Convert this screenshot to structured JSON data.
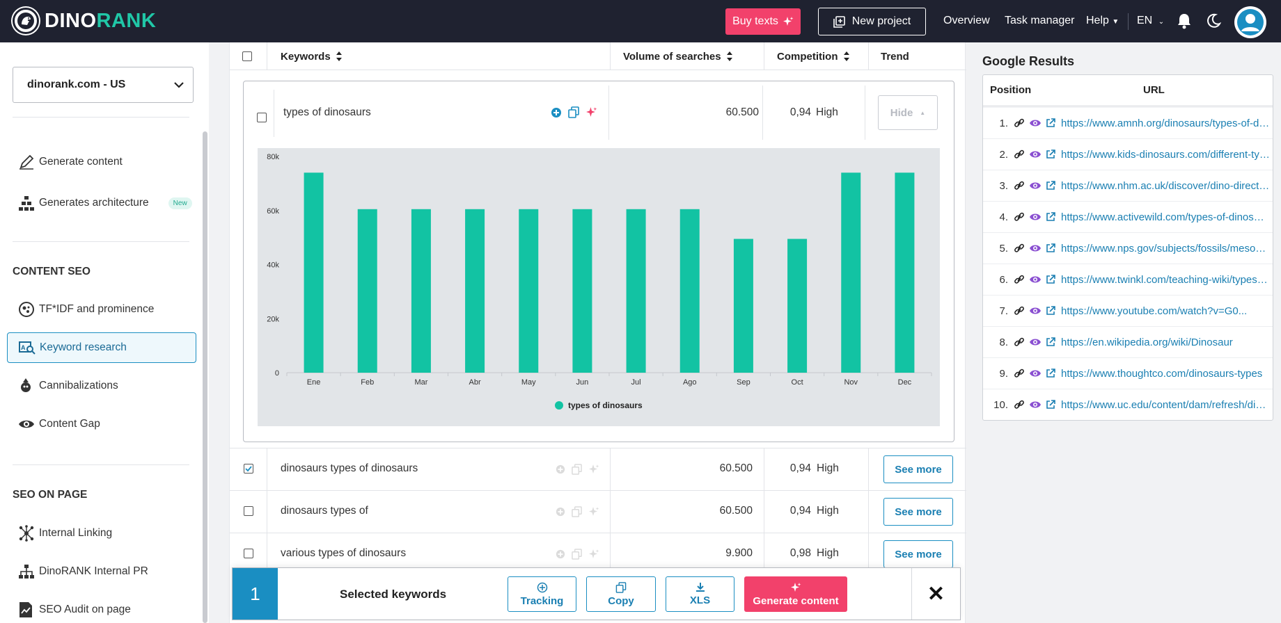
{
  "app": {
    "logo_text_1": "DINO",
    "logo_text_2": "RANK",
    "accent_color": "#20c7a7",
    "pink_color": "#f2416b",
    "blue_color": "#1a8ec2"
  },
  "topbar": {
    "buy_texts": "Buy texts",
    "new_project": "New project",
    "overview": "Overview",
    "task_manager": "Task manager",
    "help": "Help",
    "language": "EN"
  },
  "sidebar": {
    "project": "dinorank.com - US",
    "items_top": [
      {
        "label": "Generate content",
        "icon": "pencil-icon"
      },
      {
        "label": "Generates architecture",
        "icon": "hierarchy-icon",
        "badge": "New"
      }
    ],
    "section_content_seo": "CONTENT SEO",
    "content_seo_items": [
      {
        "label": "TF*IDF and prominence",
        "icon": "tfidf-icon"
      },
      {
        "label": "Keyword research",
        "icon": "keyword-research-icon",
        "active": true
      },
      {
        "label": "Cannibalizations",
        "icon": "cannibal-icon"
      },
      {
        "label": "Content Gap",
        "icon": "eye-icon"
      }
    ],
    "section_seo_on_page": "SEO ON PAGE",
    "seo_on_page_items": [
      {
        "label": "Internal Linking",
        "icon": "network-icon"
      },
      {
        "label": "DinoRANK Internal PR",
        "icon": "sitemap-icon"
      },
      {
        "label": "SEO Audit on page",
        "icon": "audit-icon"
      }
    ]
  },
  "table": {
    "headers": {
      "keywords": "Keywords",
      "volume": "Volume of searches",
      "competition": "Competition",
      "trend": "Trend"
    },
    "expanded_row": {
      "keyword": "types of dinosaurs",
      "volume": "60.500",
      "competition": "0,94",
      "level": "High",
      "hide_label": "Hide"
    },
    "rows": [
      {
        "keyword": "dinosaurs types of dinosaurs",
        "volume": "60.500",
        "competition": "0,94",
        "level": "High",
        "checked": true,
        "action": "See more"
      },
      {
        "keyword": "dinosaurs types of",
        "volume": "60.500",
        "competition": "0,94",
        "level": "High",
        "checked": false,
        "action": "See more"
      },
      {
        "keyword": "various types of dinosaurs",
        "volume": "9.900",
        "competition": "0,98",
        "level": "High",
        "checked": false,
        "action": "See more"
      }
    ]
  },
  "chart_data": {
    "type": "bar",
    "categories": [
      "Ene",
      "Feb",
      "Mar",
      "Abr",
      "May",
      "Jun",
      "Jul",
      "Ago",
      "Sep",
      "Oct",
      "Nov",
      "Dec"
    ],
    "series": [
      {
        "name": "types of dinosaurs",
        "values": [
          74000,
          60500,
          60500,
          60500,
          60500,
          60500,
          60500,
          60500,
          49500,
          49500,
          74000,
          74000
        ],
        "color": "#12c3a3"
      }
    ],
    "yticks": [
      "0",
      "20k",
      "40k",
      "60k",
      "80k"
    ],
    "ylim": [
      0,
      80000
    ],
    "grid": false,
    "legend": "bottom-center"
  },
  "selection": {
    "count": "1",
    "label": "Selected keywords",
    "tracking": "Tracking",
    "copy": "Copy",
    "xls": "XLS",
    "generate": "Generate content"
  },
  "google_results": {
    "title": "Google Results",
    "col_position": "Position",
    "col_url": "URL",
    "rows": [
      {
        "pos": "1.",
        "url": "https://www.amnh.org/dinosaurs/types-of-dinosaurs"
      },
      {
        "pos": "2.",
        "url": "https://www.kids-dinosaurs.com/different-types-of-dinosaurs.html"
      },
      {
        "pos": "3.",
        "url": "https://www.nhm.ac.uk/discover/dino-directory.html"
      },
      {
        "pos": "4.",
        "url": "https://www.activewild.com/types-of-dinosaurs/"
      },
      {
        "pos": "5.",
        "url": "https://www.nps.gov/subjects/fossils/mesozoic.htm"
      },
      {
        "pos": "6.",
        "url": "https://www.twinkl.com/teaching-wiki/types-of-dinosaurs"
      },
      {
        "pos": "7.",
        "url": "https://www.youtube.com/watch?v=G0..."
      },
      {
        "pos": "8.",
        "url": "https://en.wikipedia.org/wiki/Dinosaur"
      },
      {
        "pos": "9.",
        "url": "https://www.thoughtco.com/dinosaurs-types"
      },
      {
        "pos": "10.",
        "url": "https://www.uc.edu/content/dam/refresh/dinosaurs"
      }
    ]
  }
}
